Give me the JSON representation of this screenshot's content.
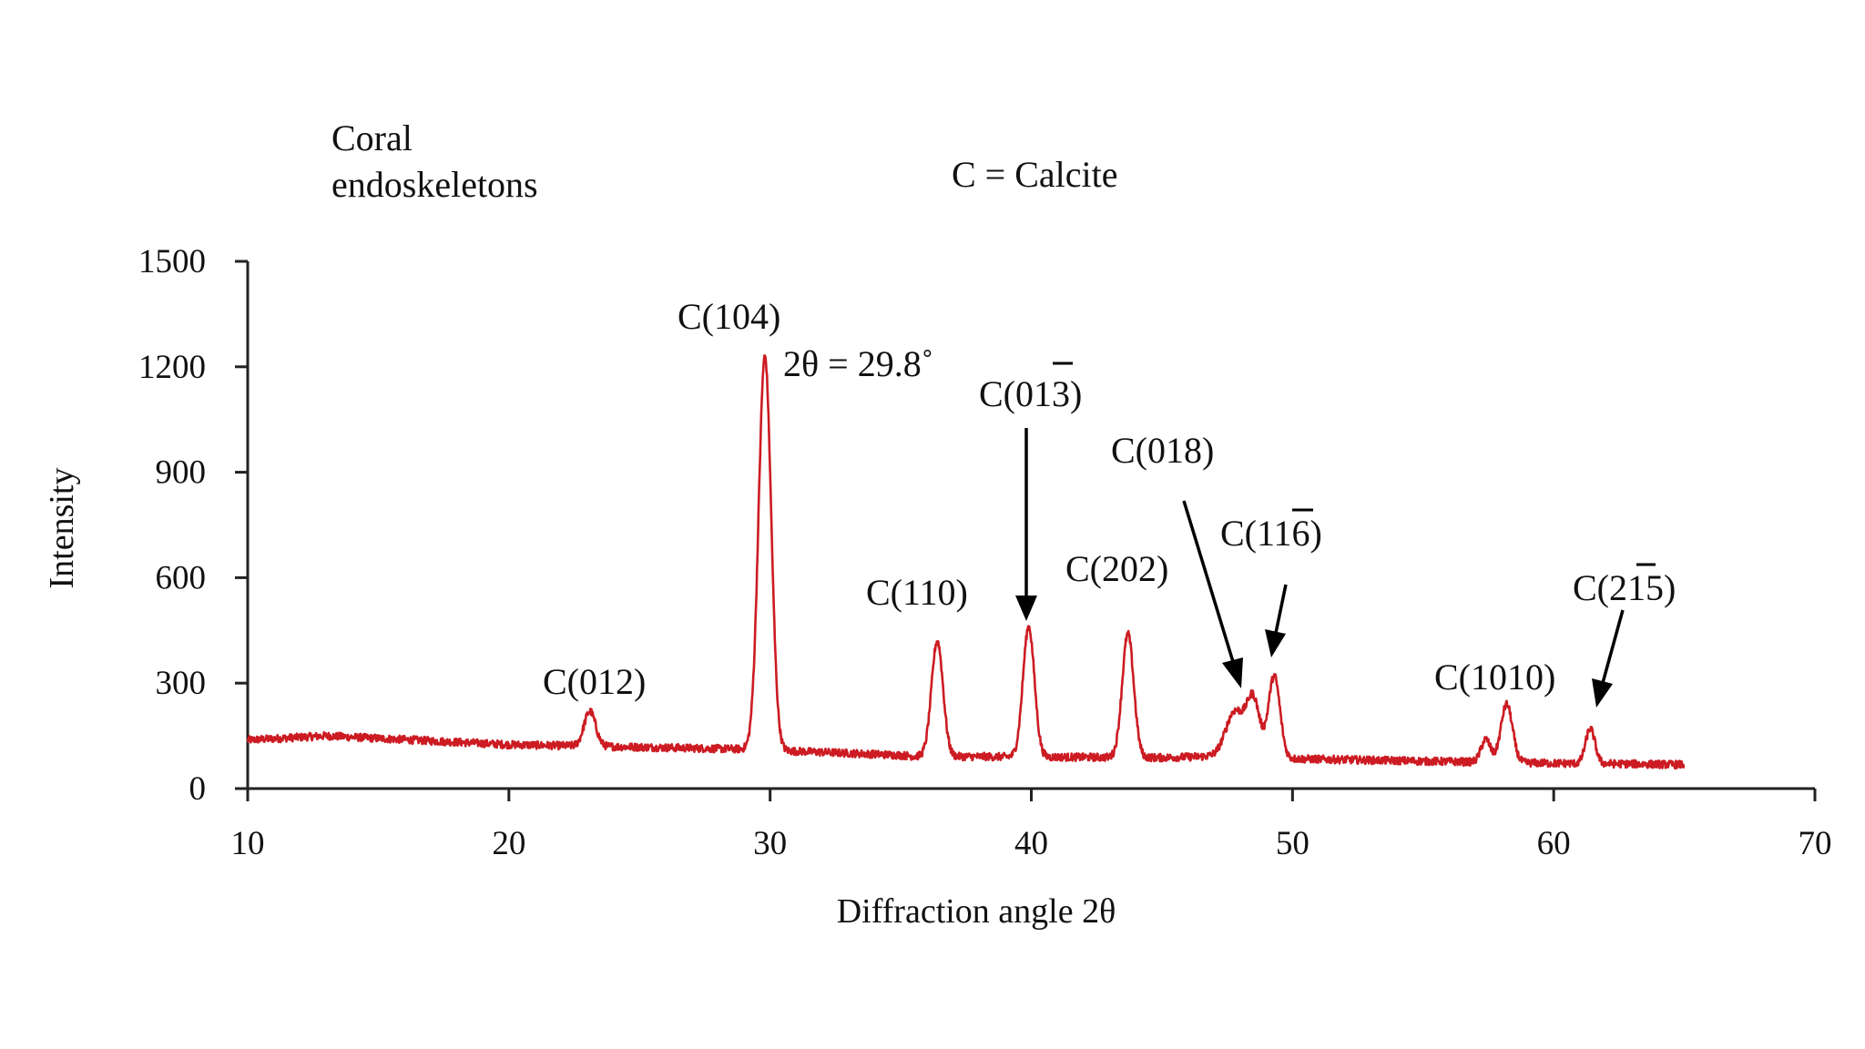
{
  "chart_data": {
    "type": "line",
    "title": "",
    "xlabel": "Diffraction angle 2θ",
    "ylabel": "Intensity",
    "xlim": [
      10,
      70
    ],
    "ylim": [
      0,
      1500
    ],
    "xticks": [
      10,
      20,
      30,
      40,
      50,
      60,
      70
    ],
    "yticks": [
      0,
      300,
      600,
      900,
      1200,
      1500
    ],
    "grid": false,
    "legend": "none",
    "line_color": "#cc1b22",
    "annotations": {
      "sample": [
        "Coral",
        "endoskeletons"
      ],
      "key": "C = Calcite",
      "main_peak_value": "2θ = 29.8˚"
    },
    "background_profile": {
      "x": [
        10,
        13,
        20,
        25,
        29,
        35,
        35.5,
        40,
        45,
        47,
        50,
        55,
        60,
        63,
        65
      ],
      "y": [
        138,
        150,
        125,
        118,
        112,
        95,
        92,
        90,
        88,
        92,
        85,
        78,
        72,
        70,
        68
      ]
    },
    "peaks": [
      {
        "x": 23.1,
        "y": 220,
        "width": 0.22,
        "label": "C(012)"
      },
      {
        "x": 29.8,
        "y": 1230,
        "width": 0.24,
        "label": "C(104)"
      },
      {
        "x": 36.4,
        "y": 420,
        "width": 0.22,
        "label": "C(110)"
      },
      {
        "x": 39.9,
        "y": 460,
        "width": 0.22,
        "label": "C(013)"
      },
      {
        "x": 43.7,
        "y": 440,
        "width": 0.22,
        "label": "C(202)"
      },
      {
        "x": 47.8,
        "y": 220,
        "width": 0.35,
        "label": ""
      },
      {
        "x": 48.5,
        "y": 250,
        "width": 0.25,
        "label": "C(018)"
      },
      {
        "x": 49.3,
        "y": 320,
        "width": 0.22,
        "label": "C(116)"
      },
      {
        "x": 57.4,
        "y": 140,
        "width": 0.18,
        "label": ""
      },
      {
        "x": 58.2,
        "y": 240,
        "width": 0.22,
        "label": "C(1010)"
      },
      {
        "x": 61.4,
        "y": 170,
        "width": 0.18,
        "label": "C(215)"
      }
    ]
  }
}
